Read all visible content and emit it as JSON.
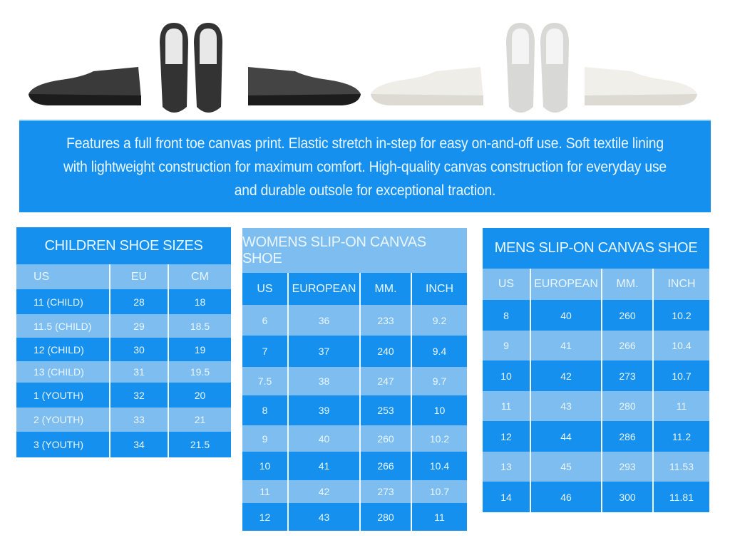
{
  "colors": {
    "dark_blue": "#1590ee",
    "light_blue": "#7dbdf0",
    "text": "#eaf6ff"
  },
  "products": [
    {
      "name": "black-slip-on-shoe",
      "color": "#2f2f2f"
    },
    {
      "name": "white-slip-on-shoe",
      "color": "#ecebe6"
    }
  ],
  "banner": {
    "text": "Features a full front toe canvas print. Elastic stretch in-step for easy on-and-off use. Soft textile lining with lightweight construction for maximum comfort. High-quality canvas construction for everyday use and durable outsole for exceptional traction."
  },
  "children": {
    "title": "CHILDREN SHOE SIZES",
    "headers": [
      "US",
      "EU",
      "CM"
    ],
    "rows": [
      [
        "11 (CHILD)",
        "28",
        "18"
      ],
      [
        "11.5 (CHILD)",
        "29",
        "18.5"
      ],
      [
        "12 (CHILD)",
        "30",
        "19"
      ],
      [
        "13 (CHILD)",
        "31",
        "19.5"
      ],
      [
        "1 (YOUTH)",
        "32",
        "20"
      ],
      [
        "2 (YOUTH)",
        "33",
        "21"
      ],
      [
        "3 (YOUTH)",
        "34",
        "21.5"
      ]
    ]
  },
  "womens": {
    "title": "WOMENS  SLIP-ON CANVAS SHOE",
    "headers": [
      "US",
      "EUROPEAN",
      "MM.",
      "INCH"
    ],
    "rows": [
      [
        "6",
        "36",
        "233",
        "9.2"
      ],
      [
        "7",
        "37",
        "240",
        "9.4"
      ],
      [
        "7.5",
        "38",
        "247",
        "9.7"
      ],
      [
        "8",
        "39",
        "253",
        "10"
      ],
      [
        "9",
        "40",
        "260",
        "10.2"
      ],
      [
        "10",
        "41",
        "266",
        "10.4"
      ],
      [
        "11",
        "42",
        "273",
        "10.7"
      ],
      [
        "12",
        "43",
        "280",
        "11"
      ]
    ]
  },
  "mens": {
    "title": "MENS SLIP-ON CANVAS SHOE",
    "headers": [
      "US",
      "EUROPEAN",
      "MM.",
      "INCH"
    ],
    "rows": [
      [
        "8",
        "40",
        "260",
        "10.2"
      ],
      [
        "9",
        "41",
        "266",
        "10.4"
      ],
      [
        "10",
        "42",
        "273",
        "10.7"
      ],
      [
        "11",
        "43",
        "280",
        "11"
      ],
      [
        "12",
        "44",
        "286",
        "11.2"
      ],
      [
        "13",
        "45",
        "293",
        "11.53"
      ],
      [
        "14",
        "46",
        "300",
        "11.81"
      ]
    ]
  }
}
